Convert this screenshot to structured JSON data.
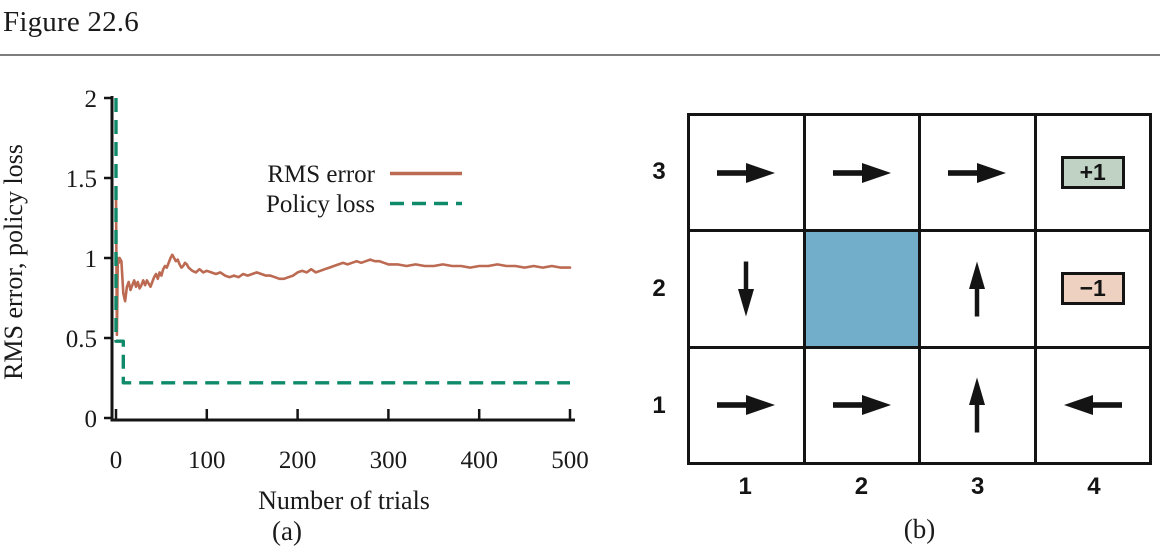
{
  "figure_title": "Figure 22.6",
  "chart_data": {
    "type": "line",
    "xlabel": "Number of trials",
    "ylabel": "RMS error, policy loss",
    "caption": "(a)",
    "xlim": [
      0,
      500
    ],
    "ylim": [
      0,
      2
    ],
    "xticks": [
      0,
      100,
      200,
      300,
      400,
      500
    ],
    "yticks": [
      0,
      0.5,
      1,
      1.5,
      2
    ],
    "grid": false,
    "legend_position": "upper center",
    "axis_color": "#141414",
    "series": [
      {
        "name": "RMS error",
        "style": "solid",
        "color": "#bc6a52",
        "x": [
          0,
          1,
          2,
          3,
          4,
          6,
          8,
          10,
          12,
          14,
          16,
          18,
          20,
          22,
          24,
          26,
          28,
          30,
          32,
          34,
          36,
          38,
          40,
          42,
          44,
          46,
          48,
          50,
          52,
          54,
          56,
          58,
          60,
          62,
          64,
          66,
          68,
          70,
          72,
          74,
          76,
          78,
          80,
          84,
          88,
          92,
          96,
          100,
          105,
          110,
          115,
          120,
          125,
          130,
          135,
          140,
          145,
          150,
          155,
          160,
          165,
          170,
          175,
          180,
          185,
          190,
          195,
          200,
          205,
          210,
          215,
          220,
          225,
          230,
          235,
          240,
          245,
          250,
          255,
          260,
          265,
          270,
          275,
          280,
          285,
          290,
          295,
          300,
          310,
          320,
          330,
          340,
          350,
          360,
          370,
          380,
          390,
          400,
          410,
          420,
          430,
          440,
          450,
          460,
          470,
          480,
          490,
          500
        ],
        "y": [
          1.4,
          0.52,
          1.0,
          0.97,
          1.0,
          0.98,
          0.78,
          0.73,
          0.82,
          0.85,
          0.8,
          0.83,
          0.86,
          0.82,
          0.85,
          0.81,
          0.83,
          0.86,
          0.83,
          0.86,
          0.84,
          0.82,
          0.85,
          0.88,
          0.9,
          0.87,
          0.91,
          0.89,
          0.93,
          0.95,
          0.94,
          0.97,
          1.0,
          1.02,
          1.0,
          0.98,
          0.99,
          0.96,
          0.94,
          0.95,
          0.97,
          0.96,
          0.94,
          0.92,
          0.91,
          0.93,
          0.91,
          0.92,
          0.91,
          0.9,
          0.91,
          0.89,
          0.88,
          0.89,
          0.88,
          0.9,
          0.89,
          0.9,
          0.91,
          0.9,
          0.89,
          0.89,
          0.88,
          0.87,
          0.87,
          0.88,
          0.89,
          0.91,
          0.92,
          0.91,
          0.93,
          0.91,
          0.92,
          0.93,
          0.94,
          0.95,
          0.96,
          0.97,
          0.96,
          0.97,
          0.98,
          0.97,
          0.98,
          0.99,
          0.98,
          0.98,
          0.97,
          0.96,
          0.96,
          0.95,
          0.96,
          0.95,
          0.95,
          0.96,
          0.95,
          0.95,
          0.94,
          0.95,
          0.95,
          0.96,
          0.95,
          0.95,
          0.94,
          0.95,
          0.94,
          0.95,
          0.94,
          0.94
        ]
      },
      {
        "name": "Policy loss",
        "style": "dashed",
        "color": "#0f8a6a",
        "x": [
          0,
          0,
          8,
          8,
          500
        ],
        "y": [
          2.0,
          0.48,
          0.48,
          0.22,
          0.22
        ]
      }
    ]
  },
  "grid_world": {
    "caption": "(b)",
    "row_labels": [
      "3",
      "2",
      "1"
    ],
    "col_labels": [
      "1",
      "2",
      "3",
      "4"
    ],
    "colors": {
      "obstacle": "#72adc9",
      "positive_terminal": "#bfd2c4",
      "negative_terminal": "#eed1c0",
      "ink": "#141414"
    },
    "rows": [
      {
        "label": "3",
        "cells": [
          {
            "type": "arrow",
            "dir": "right"
          },
          {
            "type": "arrow",
            "dir": "right"
          },
          {
            "type": "arrow",
            "dir": "right"
          },
          {
            "type": "terminal",
            "label": "+1",
            "fill": "#bfd2c4"
          }
        ]
      },
      {
        "label": "2",
        "cells": [
          {
            "type": "arrow",
            "dir": "down"
          },
          {
            "type": "obstacle",
            "fill": "#72adc9"
          },
          {
            "type": "arrow",
            "dir": "up"
          },
          {
            "type": "terminal",
            "label": "−1",
            "fill": "#eed1c0"
          }
        ]
      },
      {
        "label": "1",
        "cells": [
          {
            "type": "arrow",
            "dir": "right"
          },
          {
            "type": "arrow",
            "dir": "right"
          },
          {
            "type": "arrow",
            "dir": "up"
          },
          {
            "type": "arrow",
            "dir": "left"
          }
        ]
      }
    ]
  }
}
